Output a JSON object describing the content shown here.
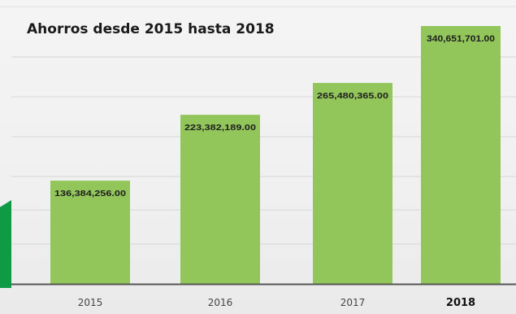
{
  "chart_data": {
    "type": "bar",
    "title": "Ahorros desde 2015 hasta 2018",
    "categories": [
      "2015",
      "2016",
      "2017",
      "2018"
    ],
    "values": [
      136384256.0,
      223382189.0,
      265480365.0,
      340651701.0
    ],
    "data_labels": [
      "136,384,256.00",
      "223,382,189.00",
      "265,480,365.00",
      "340,651,701.00"
    ],
    "xlabel": "",
    "ylabel": "",
    "ylim": [
      0,
      360000000
    ],
    "grid": true,
    "legend": "none",
    "colors": {
      "bar": "#92c55a",
      "baseline": "#555555",
      "grid": "#d6d6d6",
      "accent": "#0f9a45"
    }
  }
}
